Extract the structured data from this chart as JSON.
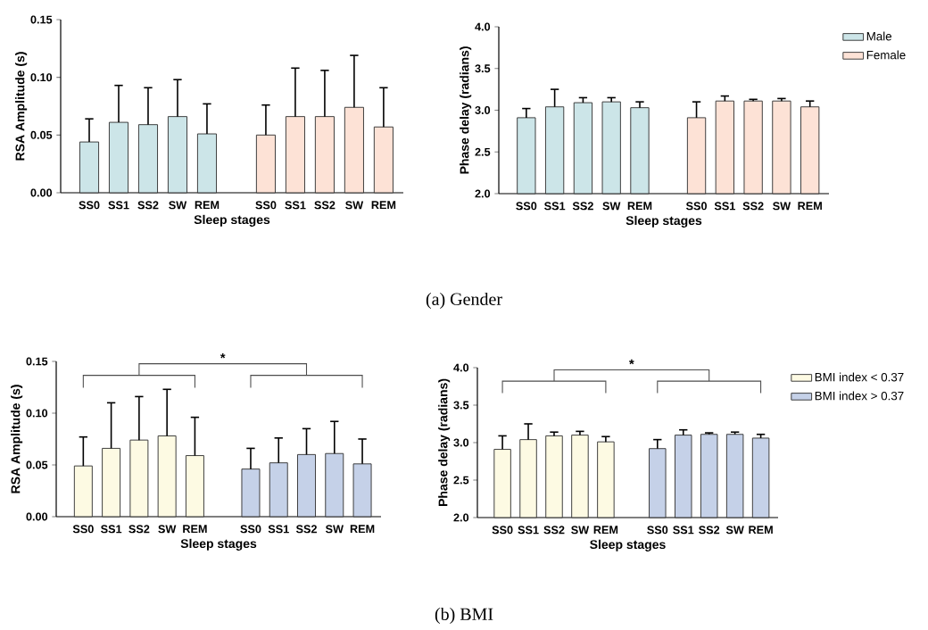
{
  "chart_data": [
    {
      "type": "bar",
      "xlabel": "Sleep stages",
      "ylabel": "RSA Amplitude (s)",
      "categories": [
        "SS0",
        "SS1",
        "SS2",
        "SW",
        "REM",
        null,
        "SS0",
        "SS1",
        "SS2",
        "SW",
        "REM"
      ],
      "ylim": [
        0,
        0.15
      ],
      "yticks": [
        {
          "value": 0,
          "label": "0.00"
        },
        0.05,
        {
          "value": 0.1,
          "label": "0.10"
        },
        0.15
      ],
      "series": [
        {
          "color": "#cce5e8",
          "values": [
            0.044,
            0.061,
            0.059,
            0.066,
            0.051,
            null,
            null,
            null,
            null,
            null,
            null
          ],
          "errors": [
            [
              0.044,
              0.064
            ],
            [
              0.061,
              0.093
            ],
            [
              0.059,
              0.091
            ],
            [
              0.066,
              0.098
            ],
            [
              0.051,
              0.077
            ],
            null,
            null,
            null,
            null,
            null,
            null
          ]
        },
        {
          "color": "#fde2d6",
          "values": [
            null,
            null,
            null,
            null,
            null,
            null,
            0.05,
            0.066,
            0.066,
            0.074,
            0.057
          ],
          "errors": [
            null,
            null,
            null,
            null,
            null,
            null,
            [
              0.05,
              0.076
            ],
            [
              0.066,
              0.108
            ],
            [
              0.066,
              0.106
            ],
            [
              0.074,
              0.119
            ],
            [
              0.057,
              0.091
            ]
          ]
        }
      ],
      "annotations": [
        "(a) Gender"
      ]
    },
    {
      "type": "bar",
      "xlabel": "Sleep stages",
      "ylabel": "Phase delay (radians)",
      "categories": [
        "SS0",
        "SS1",
        "SS2",
        "SW",
        "REM",
        null,
        "SS0",
        "SS1",
        "SS2",
        "SW",
        "REM"
      ],
      "ylim": [
        2,
        4
      ],
      "yticks": [
        {
          "value": 2,
          "label": "2.0"
        },
        2.5,
        {
          "value": 3,
          "label": "3.0"
        },
        3.5,
        {
          "value": 4,
          "label": "4.0"
        }
      ],
      "legend": "top right",
      "series": [
        {
          "name": "Male",
          "color": "#cce5e8",
          "values": [
            2.91,
            3.04,
            3.09,
            3.1,
            3.03,
            null,
            null,
            null,
            null,
            null,
            null
          ],
          "errors": [
            [
              2.91,
              3.02
            ],
            [
              3.04,
              3.25
            ],
            [
              3.09,
              3.15
            ],
            [
              3.1,
              3.15
            ],
            [
              3.03,
              3.1
            ],
            null,
            null,
            null,
            null,
            null,
            null
          ]
        },
        {
          "name": "Female",
          "color": "#fde2d6",
          "values": [
            null,
            null,
            null,
            null,
            null,
            null,
            2.91,
            3.11,
            3.11,
            3.11,
            3.04
          ],
          "errors": [
            null,
            null,
            null,
            null,
            null,
            null,
            [
              2.91,
              3.1
            ],
            [
              3.11,
              3.17
            ],
            [
              3.11,
              3.13
            ],
            [
              3.11,
              3.14
            ],
            [
              3.04,
              3.11
            ]
          ]
        }
      ]
    },
    {
      "type": "bar",
      "xlabel": "Sleep stages",
      "ylabel": "RSA Amplitude (s)",
      "categories": [
        "SS0",
        "SS1",
        "SS2",
        "SW",
        "REM",
        null,
        "SS0",
        "SS1",
        "SS2",
        "SW",
        "REM"
      ],
      "ylim": [
        0,
        0.15
      ],
      "yticks": [
        {
          "value": 0,
          "label": "0.00"
        },
        0.05,
        {
          "value": 0.1,
          "label": "0.10"
        },
        0.15
      ],
      "series": [
        {
          "color": "#fdfae3",
          "values": [
            0.049,
            0.066,
            0.074,
            0.078,
            0.059,
            null,
            null,
            null,
            null,
            null,
            null
          ],
          "errors": [
            [
              0.049,
              0.077
            ],
            [
              0.066,
              0.11
            ],
            [
              0.074,
              0.116
            ],
            [
              0.078,
              0.123
            ],
            [
              0.059,
              0.096
            ],
            null,
            null,
            null,
            null,
            null,
            null
          ]
        },
        {
          "color": "#c5d1e8",
          "values": [
            null,
            null,
            null,
            null,
            null,
            null,
            0.046,
            0.052,
            0.06,
            0.061,
            0.051
          ],
          "errors": [
            null,
            null,
            null,
            null,
            null,
            null,
            [
              0.046,
              0.066
            ],
            [
              0.052,
              0.076
            ],
            [
              0.06,
              0.085
            ],
            [
              0.061,
              0.092
            ],
            [
              0.051,
              0.075
            ]
          ]
        }
      ],
      "annotations": [
        "*",
        "(b) BMI"
      ]
    },
    {
      "type": "bar",
      "xlabel": "Sleep stages",
      "ylabel": "Phase delay (radians)",
      "categories": [
        "SS0",
        "SS1",
        "SS2",
        "SW",
        "REM",
        null,
        "SS0",
        "SS1",
        "SS2",
        "SW",
        "REM"
      ],
      "ylim": [
        2,
        4
      ],
      "yticks": [
        {
          "value": 2,
          "label": "2.0"
        },
        2.5,
        {
          "value": 3,
          "label": "3.0"
        },
        3.5,
        {
          "value": 4,
          "label": "4.0"
        }
      ],
      "legend": "top right",
      "series": [
        {
          "name": "BMI index < 0.37",
          "color": "#fdfae3",
          "values": [
            2.91,
            3.04,
            3.09,
            3.1,
            3.01,
            null,
            null,
            null,
            null,
            null,
            null
          ],
          "errors": [
            [
              2.91,
              3.09
            ],
            [
              3.04,
              3.25
            ],
            [
              3.09,
              3.14
            ],
            [
              3.1,
              3.15
            ],
            [
              3.01,
              3.08
            ],
            null,
            null,
            null,
            null,
            null,
            null
          ]
        },
        {
          "name": "BMI index > 0.37",
          "color": "#c5d1e8",
          "values": [
            null,
            null,
            null,
            null,
            null,
            null,
            2.92,
            3.1,
            3.11,
            3.11,
            3.06
          ],
          "errors": [
            null,
            null,
            null,
            null,
            null,
            null,
            [
              2.92,
              3.04
            ],
            [
              3.1,
              3.17
            ],
            [
              3.11,
              3.13
            ],
            [
              3.11,
              3.14
            ],
            [
              3.06,
              3.11
            ]
          ]
        }
      ],
      "annotations": [
        "*"
      ]
    }
  ]
}
